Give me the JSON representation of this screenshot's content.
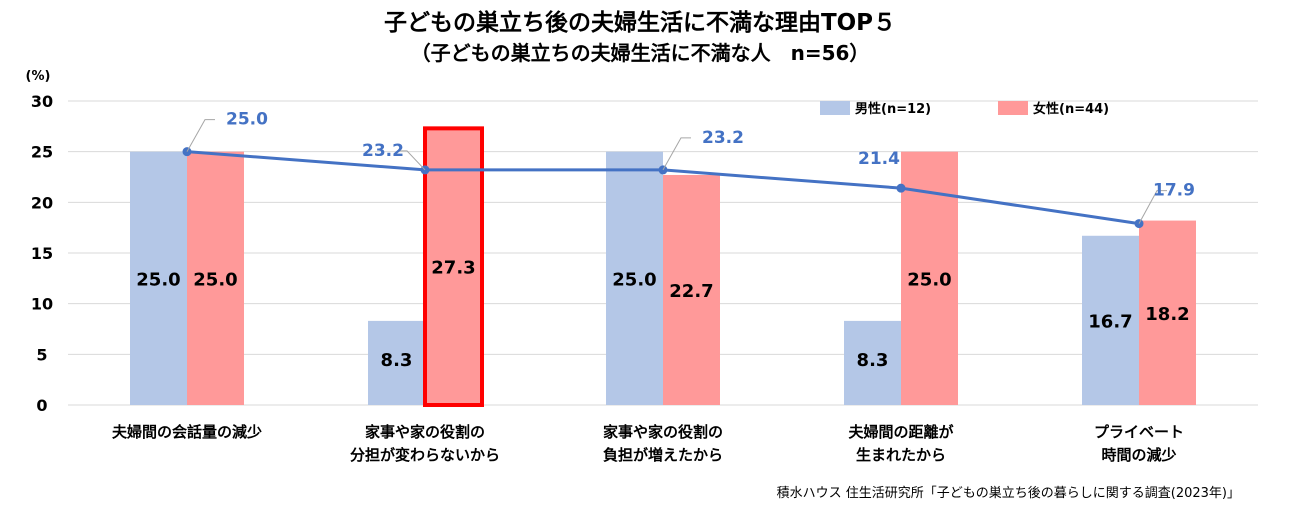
{
  "chart_data": {
    "type": "bar",
    "title": "子どもの巣立ち後の夫婦生活に不満な理由TOP５",
    "subtitle": "（子どもの巣立ちの夫婦生活に不満な人　n=56）",
    "ylabel": "(%)",
    "ylim": [
      0,
      30
    ],
    "yticks": [
      "0",
      "5",
      "10",
      "15",
      "20",
      "25",
      "30"
    ],
    "grid": true,
    "legend_position": "top-right",
    "categories": [
      [
        "夫婦間の会話量の減少"
      ],
      [
        "家事や家の役割の",
        "分担が変わらないから"
      ],
      [
        "家事や家の役割の",
        "負担が増えたから"
      ],
      [
        "夫婦間の距離が",
        "生まれたから"
      ],
      [
        "プライベート",
        "時間の減少"
      ]
    ],
    "series": [
      {
        "name": "男性(n=12)",
        "type": "bar",
        "color": "#B4C7E7",
        "values": [
          25.0,
          8.3,
          25.0,
          8.3,
          16.7
        ],
        "labels": [
          "25.0",
          "8.3",
          "25.0",
          "8.3",
          "16.7"
        ]
      },
      {
        "name": "女性(n=44)",
        "type": "bar",
        "color": "#FF9999",
        "values": [
          25.0,
          27.3,
          22.7,
          25.0,
          18.2
        ],
        "labels": [
          "25.0",
          "27.3",
          "22.7",
          "25.0",
          "18.2"
        ]
      },
      {
        "type": "line",
        "color": "#4472C4",
        "values": [
          25.0,
          23.2,
          23.2,
          21.4,
          17.9
        ],
        "labels": [
          "25.0",
          "23.2",
          "23.2",
          "21.4",
          "17.9"
        ]
      }
    ],
    "highlight": {
      "series": 1,
      "category": 1,
      "color": "#FF0000"
    },
    "source": "積水ハウス 住生活研究所「子どもの巣立ち後の暮らしに関する調査(2023年)」"
  }
}
